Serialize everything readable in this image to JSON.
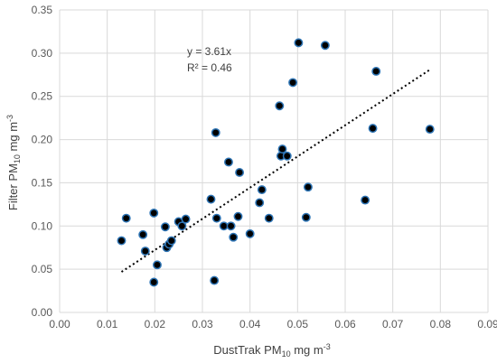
{
  "chart_data": {
    "type": "scatter",
    "title": "",
    "xlabel": "DustTrak PM10 mg m-3",
    "xlabel_parts": [
      "DustTrak PM",
      "10",
      " mg m",
      "-3"
    ],
    "ylabel": "Filter PM10 mg m-3",
    "ylabel_parts": [
      "Filter PM",
      "10",
      " mg m",
      "-3"
    ],
    "xlim": [
      0,
      0.09
    ],
    "ylim": [
      0,
      0.35
    ],
    "xticks": [
      "0.00",
      "0.01",
      "0.02",
      "0.03",
      "0.04",
      "0.05",
      "0.06",
      "0.07",
      "0.08",
      "0.09"
    ],
    "yticks": [
      "0.00",
      "0.05",
      "0.10",
      "0.15",
      "0.20",
      "0.25",
      "0.30",
      "0.35"
    ],
    "grid": true,
    "legend": "none",
    "colors": {
      "marker_fill": "#000000",
      "marker_edge": "#2e75b6",
      "trendline": "#000000",
      "grid": "#d9d9d9"
    },
    "trendline": {
      "equation": "y = 3.61x",
      "r_squared": "R² = 0.46",
      "slope": 3.61,
      "x_range": [
        0.013,
        0.078
      ]
    },
    "points": [
      {
        "x": 0.013,
        "y": 0.083
      },
      {
        "x": 0.014,
        "y": 0.109
      },
      {
        "x": 0.0175,
        "y": 0.09
      },
      {
        "x": 0.018,
        "y": 0.071
      },
      {
        "x": 0.0198,
        "y": 0.115
      },
      {
        "x": 0.0198,
        "y": 0.035
      },
      {
        "x": 0.0205,
        "y": 0.055
      },
      {
        "x": 0.0222,
        "y": 0.099
      },
      {
        "x": 0.0225,
        "y": 0.075
      },
      {
        "x": 0.023,
        "y": 0.079
      },
      {
        "x": 0.0235,
        "y": 0.083
      },
      {
        "x": 0.025,
        "y": 0.105
      },
      {
        "x": 0.0257,
        "y": 0.1
      },
      {
        "x": 0.0265,
        "y": 0.108
      },
      {
        "x": 0.0318,
        "y": 0.131
      },
      {
        "x": 0.0325,
        "y": 0.037
      },
      {
        "x": 0.0328,
        "y": 0.208
      },
      {
        "x": 0.033,
        "y": 0.109
      },
      {
        "x": 0.0345,
        "y": 0.1
      },
      {
        "x": 0.0355,
        "y": 0.174
      },
      {
        "x": 0.036,
        "y": 0.1
      },
      {
        "x": 0.0365,
        "y": 0.087
      },
      {
        "x": 0.0375,
        "y": 0.111
      },
      {
        "x": 0.0378,
        "y": 0.162
      },
      {
        "x": 0.04,
        "y": 0.091
      },
      {
        "x": 0.042,
        "y": 0.127
      },
      {
        "x": 0.0425,
        "y": 0.142
      },
      {
        "x": 0.044,
        "y": 0.109
      },
      {
        "x": 0.0462,
        "y": 0.239
      },
      {
        "x": 0.0465,
        "y": 0.181
      },
      {
        "x": 0.0468,
        "y": 0.189
      },
      {
        "x": 0.0478,
        "y": 0.181
      },
      {
        "x": 0.049,
        "y": 0.266
      },
      {
        "x": 0.0502,
        "y": 0.312
      },
      {
        "x": 0.0518,
        "y": 0.11
      },
      {
        "x": 0.0522,
        "y": 0.145
      },
      {
        "x": 0.0558,
        "y": 0.309
      },
      {
        "x": 0.0642,
        "y": 0.13
      },
      {
        "x": 0.0658,
        "y": 0.213
      },
      {
        "x": 0.0665,
        "y": 0.279
      },
      {
        "x": 0.0778,
        "y": 0.212
      }
    ]
  }
}
